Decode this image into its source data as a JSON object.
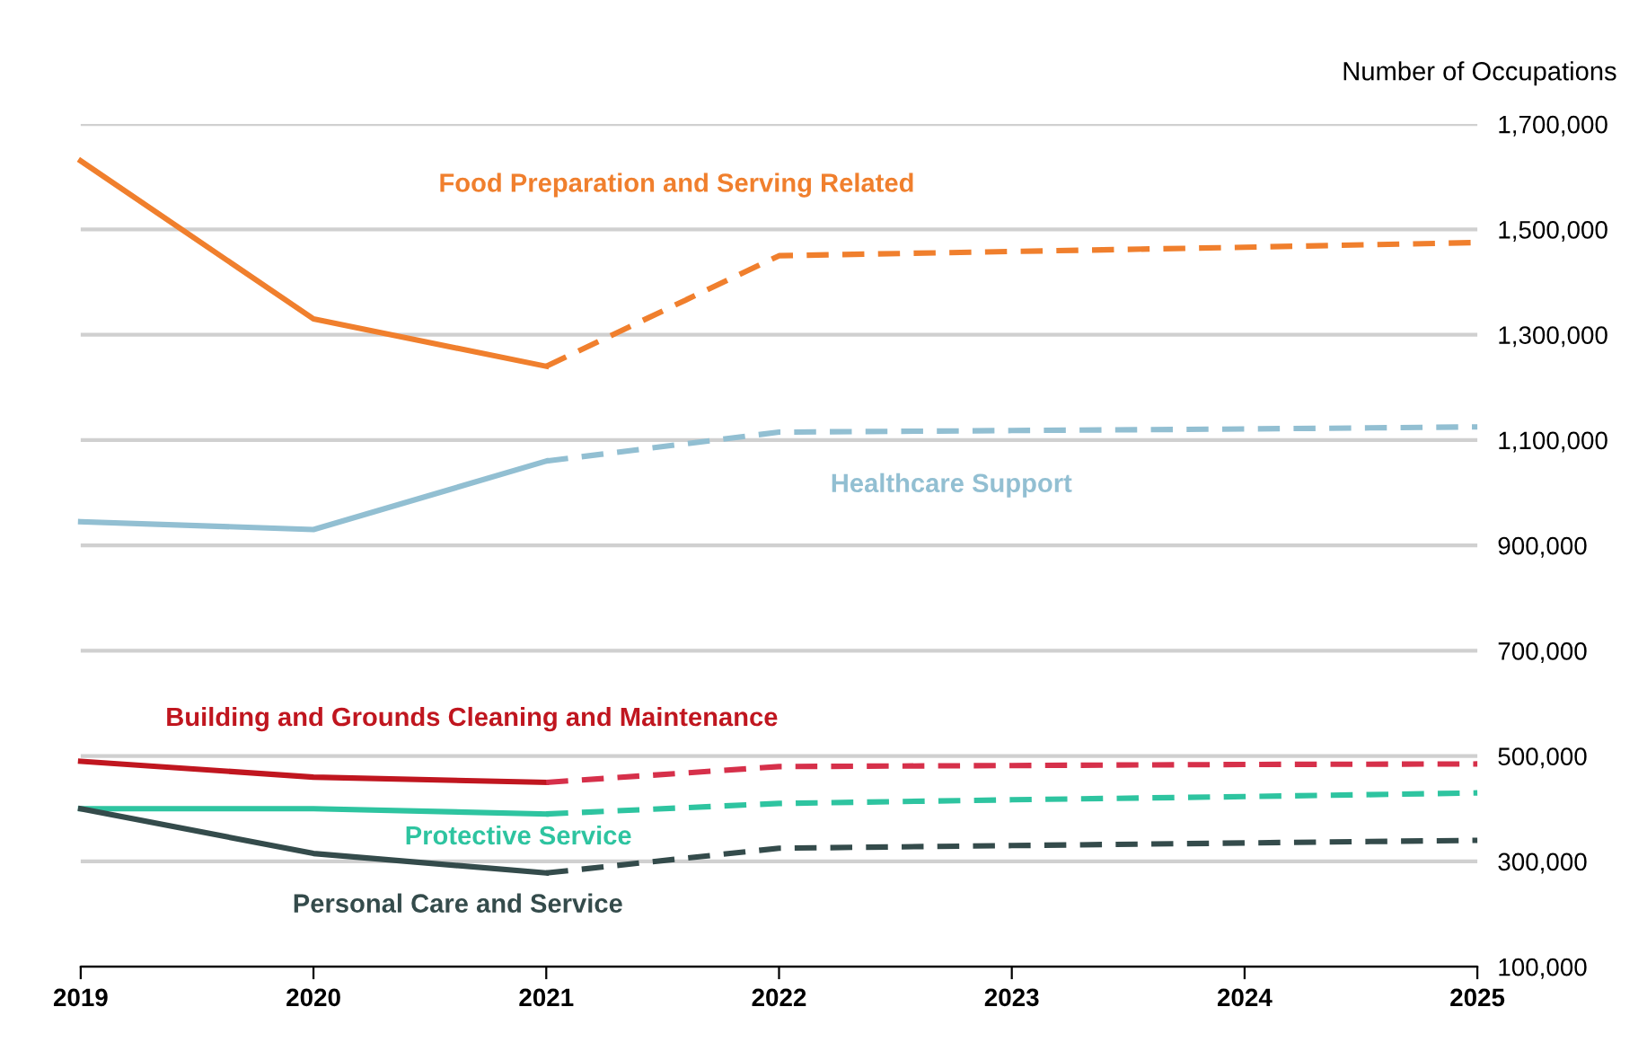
{
  "chart_data": {
    "type": "line",
    "ylabel": "Number of Occupations",
    "x": [
      2019,
      2020,
      2021,
      2022,
      2023,
      2024,
      2025
    ],
    "series": [
      {
        "name": "Food Preparation and Serving Related",
        "color": "#f07f2d",
        "line_style": "solid",
        "values": [
          1630000,
          1330000,
          1240000,
          null,
          null,
          null,
          null
        ]
      },
      {
        "color": "#f07f2d",
        "line_style": "dashed",
        "values": [
          null,
          null,
          1240000,
          1450000,
          1458000,
          1466000,
          1475000
        ]
      },
      {
        "name": "Healthcare Support",
        "color": "#92bfd2",
        "line_style": "solid",
        "values": [
          945000,
          930000,
          1060000,
          null,
          null,
          null,
          null
        ]
      },
      {
        "color": "#92bfd2",
        "line_style": "dashed",
        "values": [
          null,
          null,
          1060000,
          1115000,
          1118000,
          1121000,
          1125000
        ]
      },
      {
        "name": "Building and Grounds Cleaning and Maintenance",
        "color": "#c0161f",
        "line_style": "solid",
        "values": [
          490000,
          460000,
          450000,
          null,
          null,
          null,
          null
        ]
      },
      {
        "color": "#d6304a",
        "line_style": "dashed",
        "values": [
          null,
          null,
          450000,
          480000,
          482000,
          484000,
          485000
        ]
      },
      {
        "name": "Protective Service",
        "color": "#2ec4a0",
        "line_style": "solid",
        "values": [
          400000,
          400000,
          390000,
          null,
          null,
          null,
          null
        ]
      },
      {
        "color": "#2ec4a0",
        "line_style": "dashed",
        "values": [
          null,
          null,
          390000,
          410000,
          417000,
          423000,
          430000
        ]
      },
      {
        "name": "Personal Care and Service",
        "color": "#344b4b",
        "line_style": "solid",
        "values": [
          400000,
          315000,
          278000,
          null,
          null,
          null,
          null
        ]
      },
      {
        "color": "#344b4b",
        "line_style": "dashed",
        "values": [
          null,
          null,
          278000,
          325000,
          330000,
          335000,
          340000
        ]
      }
    ],
    "xlim": [
      2019,
      2025
    ],
    "xticks": [
      2019,
      2020,
      2021,
      2022,
      2023,
      2024,
      2025
    ],
    "ylim": [
      100000,
      1700000
    ],
    "yticks": [
      {
        "value": 100000,
        "label": "100,000"
      },
      {
        "value": 300000,
        "label": "300,000"
      },
      {
        "value": 500000,
        "label": "500,000"
      },
      {
        "value": 700000,
        "label": "700,000"
      },
      {
        "value": 900000,
        "label": "900,000"
      },
      {
        "value": 1100000,
        "label": "1,100,000"
      },
      {
        "value": 1300000,
        "label": "1,300,000"
      },
      {
        "value": 1500000,
        "label": "1,500,000"
      },
      {
        "value": 1700000,
        "label": "1,700,000"
      }
    ],
    "grid": "y",
    "legend": false,
    "marker": "none"
  }
}
